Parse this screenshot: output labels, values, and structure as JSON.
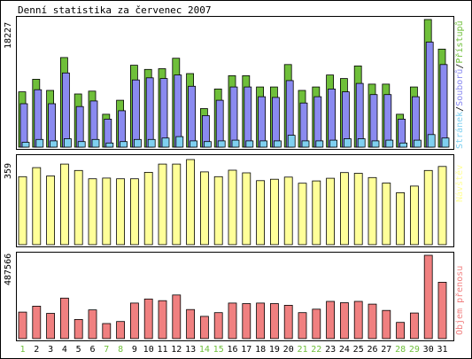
{
  "title": "Denní statistika za červenec 2007",
  "colors": {
    "hits": "#6fbf3a",
    "files": "#8a8af0",
    "pages": "#7fd0f0",
    "visits": "#ffff99",
    "volume": "#f08080",
    "weekend": "#6fbf3a",
    "weekday": "#000000",
    "panel_border": "#000000"
  },
  "legend": {
    "hits": "Přístupů",
    "files": "Souborů",
    "pages": "Stránek",
    "separator": "/",
    "visits": "Návštěv",
    "volume": "Objem přenosu"
  },
  "max_labels": {
    "hits": "18227",
    "visits": "359",
    "volume": "487566"
  },
  "chart_data": [
    {
      "type": "bar",
      "title": "Denní statistika za červenec 2007",
      "categories": [
        "1",
        "2",
        "3",
        "4",
        "5",
        "6",
        "7",
        "8",
        "9",
        "10",
        "11",
        "12",
        "13",
        "14",
        "15",
        "16",
        "17",
        "18",
        "19",
        "20",
        "21",
        "22",
        "23",
        "24",
        "25",
        "26",
        "27",
        "28",
        "29",
        "30",
        "31"
      ],
      "weekend_days": [
        "1",
        "7",
        "8",
        "14",
        "15",
        "21",
        "22",
        "28",
        "29"
      ],
      "ylim": [
        0,
        18227
      ],
      "series": [
        {
          "name": "Přístupů",
          "values": [
            7900,
            9700,
            8100,
            12800,
            7600,
            8000,
            4700,
            6700,
            11700,
            11100,
            11200,
            12700,
            10500,
            5500,
            8300,
            10200,
            10200,
            8600,
            8600,
            11800,
            8100,
            8600,
            10300,
            9800,
            11600,
            9000,
            9000,
            4700,
            8600,
            18227,
            14000
          ]
        },
        {
          "name": "Souborů",
          "values": [
            6200,
            8200,
            6200,
            10600,
            5800,
            6600,
            4000,
            5200,
            9600,
            9900,
            9800,
            10300,
            8700,
            4500,
            6700,
            8600,
            8600,
            7200,
            7100,
            9500,
            6300,
            7200,
            8300,
            7900,
            9100,
            7500,
            7500,
            4000,
            7200,
            15000,
            11800
          ]
        },
        {
          "name": "Stránek",
          "values": [
            700,
            1100,
            900,
            1200,
            800,
            1100,
            600,
            800,
            1100,
            1100,
            1300,
            1500,
            900,
            800,
            900,
            1000,
            900,
            900,
            900,
            1700,
            900,
            900,
            1000,
            1200,
            1200,
            900,
            1000,
            600,
            1000,
            1800,
            1300
          ]
        }
      ]
    },
    {
      "type": "bar",
      "categories": [
        "1",
        "2",
        "3",
        "4",
        "5",
        "6",
        "7",
        "8",
        "9",
        "10",
        "11",
        "12",
        "13",
        "14",
        "15",
        "16",
        "17",
        "18",
        "19",
        "20",
        "21",
        "22",
        "23",
        "24",
        "25",
        "26",
        "27",
        "28",
        "29",
        "30",
        "31"
      ],
      "ylim": [
        0,
        359
      ],
      "series": [
        {
          "name": "Návštěv",
          "values": [
            287,
            325,
            290,
            340,
            313,
            278,
            281,
            278,
            278,
            305,
            340,
            340,
            359,
            307,
            287,
            314,
            303,
            270,
            276,
            285,
            259,
            269,
            280,
            304,
            301,
            283,
            260,
            219,
            247,
            313,
            330
          ]
        }
      ]
    },
    {
      "type": "bar",
      "categories": [
        "1",
        "2",
        "3",
        "4",
        "5",
        "6",
        "7",
        "8",
        "9",
        "10",
        "11",
        "12",
        "13",
        "14",
        "15",
        "16",
        "17",
        "18",
        "19",
        "20",
        "21",
        "22",
        "23",
        "24",
        "25",
        "26",
        "27",
        "28",
        "29",
        "30",
        "31"
      ],
      "ylim": [
        0,
        487566
      ],
      "series": [
        {
          "name": "Objem přenosu",
          "values": [
            155000,
            190000,
            148000,
            237000,
            112000,
            168000,
            88000,
            100000,
            208000,
            232000,
            222000,
            255000,
            170000,
            130000,
            152000,
            208000,
            205000,
            208000,
            205000,
            195000,
            152000,
            172000,
            218000,
            210000,
            218000,
            202000,
            165000,
            95000,
            150000,
            487566,
            330000
          ]
        }
      ]
    }
  ]
}
